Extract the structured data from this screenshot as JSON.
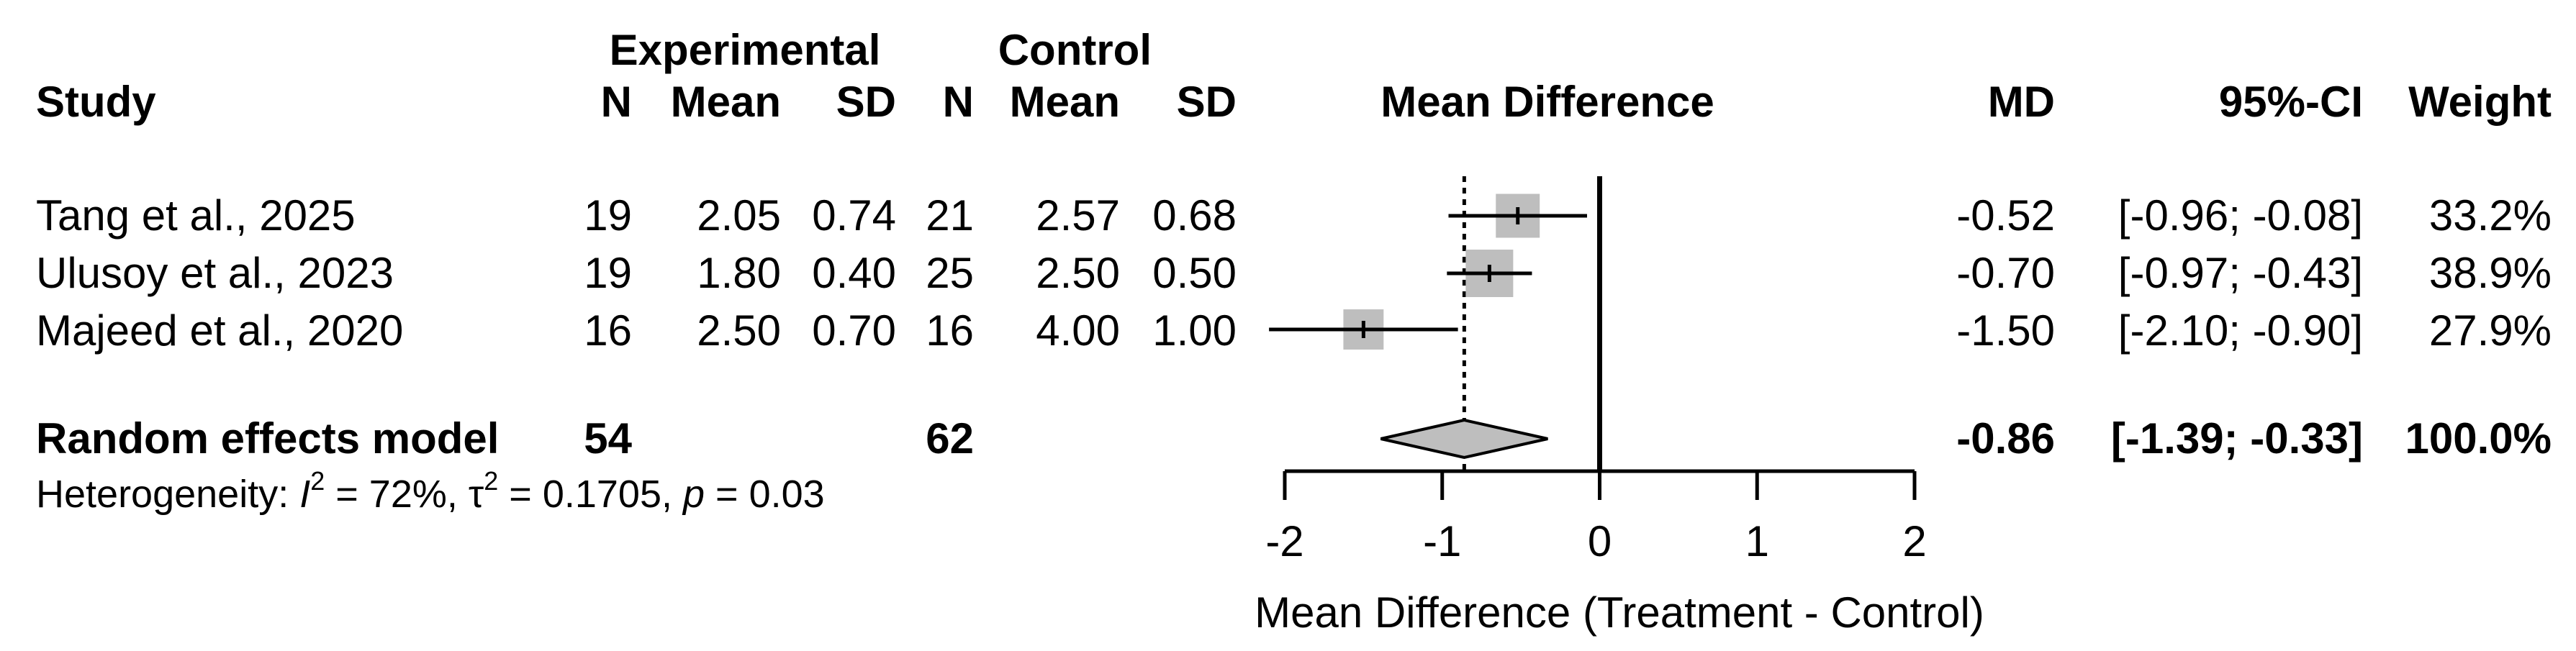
{
  "chart_data": {
    "type": "forest",
    "headers": {
      "study": "Study",
      "experimental_group": "Experimental",
      "control_group": "Control",
      "n": "N",
      "mean": "Mean",
      "sd": "SD",
      "plot_title": "Mean Difference",
      "md": "MD",
      "ci": "95%-CI",
      "weight": "Weight"
    },
    "studies": [
      {
        "name": "Tang et al., 2025",
        "n_e": "19",
        "mean_e": "2.05",
        "sd_e": "0.74",
        "n_c": "21",
        "mean_c": "2.57",
        "sd_c": "0.68",
        "md_text": "-0.52",
        "ci_text": "[-0.96; -0.08]",
        "weight_text": "33.2%",
        "md": -0.52,
        "lower": -0.96,
        "upper": -0.08,
        "weight": 33.2
      },
      {
        "name": "Ulusoy et al., 2023",
        "n_e": "19",
        "mean_e": "1.80",
        "sd_e": "0.40",
        "n_c": "25",
        "mean_c": "2.50",
        "sd_c": "0.50",
        "md_text": "-0.70",
        "ci_text": "[-0.97; -0.43]",
        "weight_text": "38.9%",
        "md": -0.7,
        "lower": -0.97,
        "upper": -0.43,
        "weight": 38.9
      },
      {
        "name": "Majeed et al., 2020",
        "n_e": "16",
        "mean_e": "2.50",
        "sd_e": "0.70",
        "n_c": "16",
        "mean_c": "4.00",
        "sd_c": "1.00",
        "md_text": "-1.50",
        "ci_text": "[-2.10; -0.90]",
        "weight_text": "27.9%",
        "md": -1.5,
        "lower": -2.1,
        "upper": -0.9,
        "weight": 27.9
      }
    ],
    "pooled": {
      "label": "Random effects model",
      "n_e": "54",
      "n_c": "62",
      "md_text": "-0.86",
      "ci_text": "[-1.39; -0.33]",
      "weight_text": "100.0%",
      "md": -0.86,
      "lower": -1.39,
      "upper": -0.33
    },
    "heterogeneity": {
      "prefix": "Heterogeneity: ",
      "i2_sym": "I",
      "i2_val": " = 72%, ",
      "tau_sym": "τ",
      "tau_val": " = 0.1705, ",
      "p_sym": "p",
      "p_val": " = 0.03"
    },
    "x_axis": {
      "ticks": [
        -2,
        -1,
        0,
        1,
        2
      ],
      "tick_labels": [
        "-2",
        "-1",
        "0",
        "1",
        "2"
      ],
      "range": [
        -2,
        2
      ],
      "label": "Mean Difference (Treatment - Control)"
    },
    "reference_line": 0,
    "colors": {
      "square": "#bebebe",
      "diamond": "#bebebe",
      "line": "#000000"
    }
  }
}
